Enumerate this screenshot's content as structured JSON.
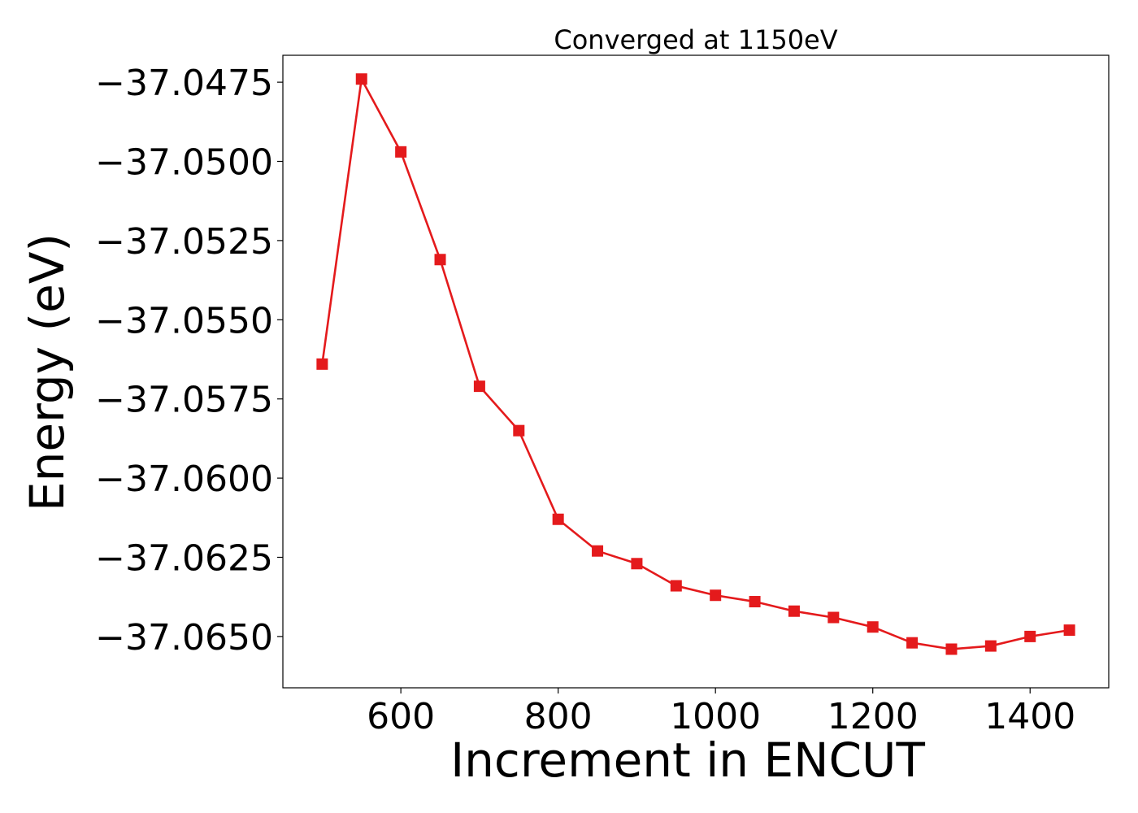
{
  "chart_data": {
    "type": "line",
    "title": "Converged at 1150eV",
    "xlabel": "Increment in ENCUT",
    "ylabel": "Energy (eV)",
    "xlim": [
      450,
      1500
    ],
    "ylim": [
      -37.06662,
      -37.04665
    ],
    "xticks": [
      600,
      800,
      1000,
      1200,
      1400
    ],
    "xtick_labels": [
      "600",
      "800",
      "1000",
      "1200",
      "1400"
    ],
    "yticks": [
      -37.0475,
      -37.05,
      -37.0525,
      -37.055,
      -37.0575,
      -37.06,
      -37.0625,
      -37.065
    ],
    "ytick_labels": [
      "−37.0475",
      "−37.0500",
      "−37.0525",
      "−37.0550",
      "−37.0575",
      "−37.0600",
      "−37.0625",
      "−37.0650"
    ],
    "grid": false,
    "series": [
      {
        "color": "#e41a1c",
        "marker": "square",
        "x": [
          500,
          550,
          600,
          650,
          700,
          750,
          800,
          850,
          900,
          950,
          1000,
          1050,
          1100,
          1150,
          1200,
          1250,
          1300,
          1350,
          1400,
          1450
        ],
        "y": [
          -37.0564,
          -37.0474,
          -37.0497,
          -37.0531,
          -37.0571,
          -37.0585,
          -37.0613,
          -37.0623,
          -37.0627,
          -37.0634,
          -37.0637,
          -37.0639,
          -37.0642,
          -37.0644,
          -37.0647,
          -37.0652,
          -37.0654,
          -37.0653,
          -37.065,
          -37.0648
        ]
      }
    ]
  }
}
